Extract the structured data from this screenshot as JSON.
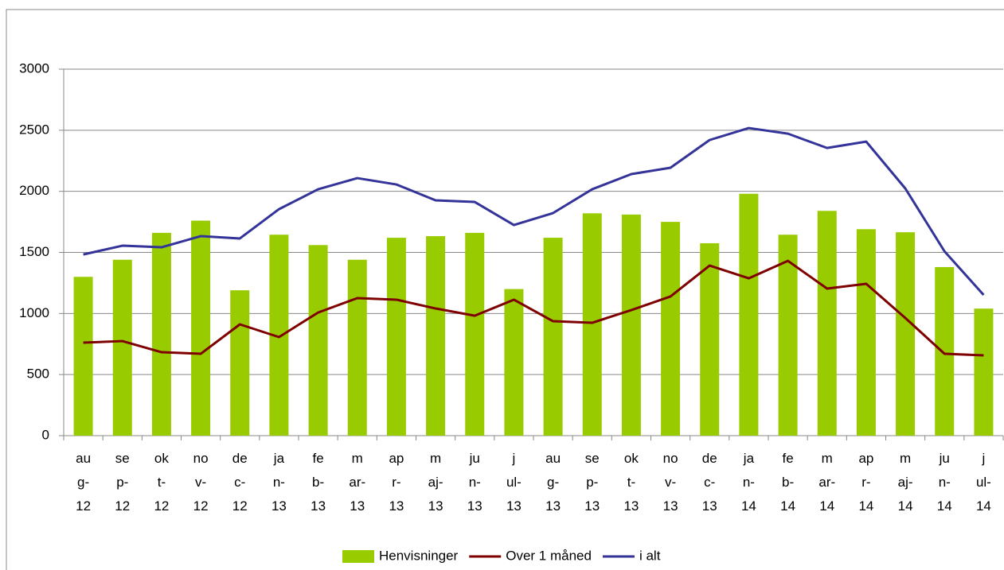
{
  "chart_data": {
    "type": "bar",
    "categories": [
      "aug-12",
      "sep-12",
      "okt-12",
      "nov-12",
      "dec-12",
      "jan-13",
      "feb-13",
      "mar-13",
      "apr-13",
      "maj-13",
      "jun-13",
      "jul-13",
      "aug-13",
      "sep-13",
      "okt-13",
      "nov-13",
      "dec-13",
      "jan-14",
      "feb-14",
      "mar-14",
      "apr-14",
      "maj-14",
      "jun-14",
      "jul-14"
    ],
    "series": [
      {
        "name": "Henvisninger",
        "type": "bar",
        "color": "#99cc00",
        "values": [
          1300,
          1440,
          1660,
          1760,
          1190,
          1645,
          1560,
          1440,
          1620,
          1633,
          1660,
          1200,
          1620,
          1820,
          1810,
          1750,
          1575,
          1980,
          1645,
          1840,
          1690,
          1665,
          1380,
          1040
        ]
      },
      {
        "name": "Over 1 måned",
        "type": "line",
        "color": "#7f0000",
        "values": [
          761,
          774,
          683,
          670,
          911,
          807,
          1008,
          1126,
          1113,
          1041,
          982,
          1113,
          937,
          924,
          1028,
          1139,
          1392,
          1288,
          1431,
          1204,
          1243,
          963,
          670,
          657
        ]
      },
      {
        "name": "i alt",
        "type": "line",
        "color": "#333399",
        "values": [
          1483,
          1555,
          1542,
          1633,
          1614,
          1854,
          2017,
          2108,
          2056,
          1926,
          1913,
          1724,
          1822,
          2017,
          2141,
          2193,
          2420,
          2518,
          2472,
          2355,
          2407,
          2023,
          1509,
          1152
        ]
      }
    ],
    "ylim": [
      0,
      3000
    ],
    "yticks": [
      0,
      500,
      1000,
      1500,
      2000,
      2500,
      3000
    ],
    "grid": true,
    "legend": "bottom"
  }
}
